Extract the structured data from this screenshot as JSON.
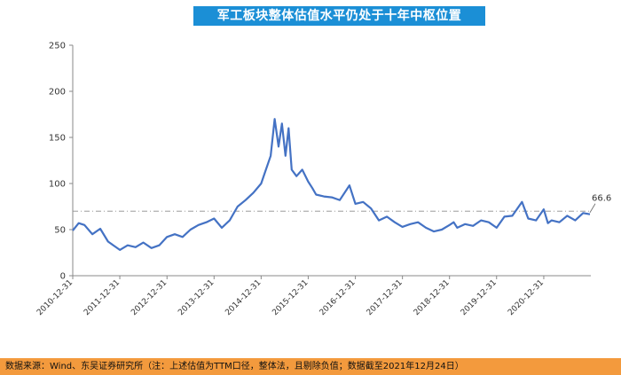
{
  "title": "军工板块整体估值水平仍处于十年中枢位置",
  "source_note": "数据来源：Wind、东吴证券研究所（注：上述估值为TTM口径，整体法，且剔除负值；数据截至2021年12月24日）",
  "colors": {
    "line": "#4472c4",
    "title_bg": "#1b8fd6",
    "footer_bg": "#f39a3d",
    "reference": "#8c8c8c"
  },
  "chart_data": {
    "type": "line",
    "title": "军工板块整体估值水平仍处于十年中枢位置",
    "xlabel": "",
    "ylabel": "",
    "ylim": [
      0,
      250
    ],
    "yticks": [
      0,
      50,
      100,
      150,
      200,
      250
    ],
    "xticks": [
      "2010-12-31",
      "2011-12-31",
      "2012-12-31",
      "2013-12-31",
      "2014-12-31",
      "2015-12-31",
      "2016-12-31",
      "2017-12-31",
      "2018-12-31",
      "2019-12-31",
      "2020-12-31"
    ],
    "grid": false,
    "reference_line": {
      "y": 70
    },
    "annotation": {
      "text": "66.6",
      "date": "2021-12-24",
      "value": 66.6
    },
    "series": [
      {
        "x": [
          "2010-12-31",
          "2011-02-15",
          "2011-04-01",
          "2011-06-01",
          "2011-08-01",
          "2011-10-01",
          "2011-12-31",
          "2012-03-01",
          "2012-05-01",
          "2012-07-01",
          "2012-09-01",
          "2012-11-01",
          "2012-12-31",
          "2013-03-01",
          "2013-05-01",
          "2013-07-01",
          "2013-09-01",
          "2013-11-01",
          "2013-12-31",
          "2014-03-01",
          "2014-05-01",
          "2014-07-01",
          "2014-09-01",
          "2014-11-01",
          "2014-12-31",
          "2015-02-01",
          "2015-03-15",
          "2015-04-15",
          "2015-05-15",
          "2015-06-10",
          "2015-07-08",
          "2015-08-01",
          "2015-08-25",
          "2015-10-01",
          "2015-11-15",
          "2015-12-31",
          "2016-02-01",
          "2016-03-01",
          "2016-05-01",
          "2016-07-01",
          "2016-09-01",
          "2016-11-15",
          "2016-12-31",
          "2017-03-01",
          "2017-05-01",
          "2017-07-01",
          "2017-09-01",
          "2017-11-01",
          "2017-12-31",
          "2018-03-01",
          "2018-05-01",
          "2018-07-01",
          "2018-09-01",
          "2018-11-01",
          "2018-12-31",
          "2019-02-01",
          "2019-03-01",
          "2019-05-01",
          "2019-07-01",
          "2019-09-01",
          "2019-11-01",
          "2019-12-31",
          "2020-03-01",
          "2020-05-01",
          "2020-07-15",
          "2020-09-01",
          "2020-11-01",
          "2020-12-31",
          "2021-02-01",
          "2021-03-01",
          "2021-05-01",
          "2021-07-01",
          "2021-09-01",
          "2021-11-01",
          "2021-12-24"
        ],
        "values": [
          49,
          57,
          55,
          45,
          51,
          37,
          28,
          33,
          31,
          36,
          30,
          33,
          42,
          45,
          42,
          50,
          55,
          58,
          62,
          52,
          60,
          75,
          82,
          90,
          100,
          113,
          130,
          170,
          140,
          165,
          130,
          160,
          115,
          108,
          115,
          102,
          95,
          88,
          86,
          85,
          82,
          98,
          78,
          80,
          73,
          60,
          64,
          58,
          53,
          56,
          58,
          52,
          48,
          50,
          55,
          58,
          52,
          56,
          54,
          60,
          58,
          52,
          64,
          65,
          80,
          62,
          60,
          72,
          57,
          60,
          58,
          65,
          60,
          68,
          66.6
        ]
      }
    ]
  }
}
